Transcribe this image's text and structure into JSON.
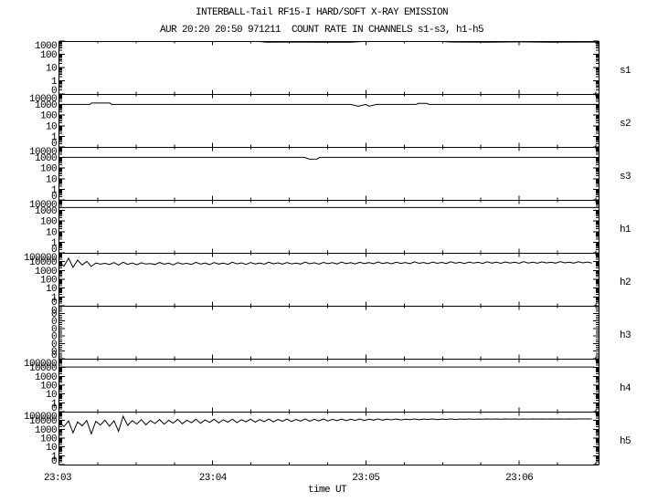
{
  "page": {
    "background": "#ffffff",
    "foreground": "#000000"
  },
  "header": {
    "title": "INTERBALL-Tail RF15-I HARD/SOFT X-RAY EMISSION",
    "subtitle": "AUR 20:20 20:50 971211  COUNT RATE IN CHANNELS s1-s3, h1-h5"
  },
  "chart_data": {
    "type": "line",
    "title": "INTERBALL-Tail RF15-I HARD/SOFT X-RAY EMISSION",
    "subtitle": "AUR 20:20 20:50 971211  COUNT RATE IN CHANNELS s1-s3, h1-h5",
    "xlabel": "time UT",
    "x_tick_labels": [
      "23:03",
      "23:04",
      "23:05",
      "23:06"
    ],
    "x_range_minutes": [
      0,
      3.52
    ],
    "x_minor_tick_seconds": 15,
    "grid": false,
    "legend": "right-side channel labels",
    "panels": [
      {
        "channel": "s1",
        "scale": "log",
        "top_value": 1000,
        "y_tick_labels": [
          "1000",
          "100",
          "10",
          "1",
          "0"
        ],
        "series": {
          "t": [
            0,
            0.3,
            0.6,
            1.0,
            1.3,
            1.35,
            1.5,
            1.7,
            1.9,
            2.0,
            2.2,
            2.5,
            2.55,
            2.8,
            3.0,
            3.2,
            3.52
          ],
          "v": [
            960,
            955,
            965,
            950,
            940,
            820,
            840,
            810,
            830,
            950,
            955,
            930,
            850,
            830,
            860,
            820,
            840
          ]
        }
      },
      {
        "channel": "s2",
        "scale": "log",
        "top_value": 10000,
        "y_tick_labels": [
          "10000",
          "1000",
          "100",
          "10",
          "1",
          "0"
        ],
        "series": {
          "t": [
            0,
            0.2,
            0.21,
            0.33,
            0.34,
            1.9,
            1.95,
            2.0,
            2.02,
            2.07,
            2.33,
            2.34,
            2.4,
            2.41,
            3.52
          ],
          "v": [
            1050,
            1050,
            1400,
            1400,
            1050,
            1050,
            700,
            1050,
            720,
            1050,
            1050,
            1300,
            1300,
            1050,
            1050
          ]
        }
      },
      {
        "channel": "s3",
        "scale": "log",
        "top_value": 10000,
        "y_tick_labels": [
          "10000",
          "1000",
          "100",
          "10",
          "1",
          "0"
        ],
        "series": {
          "t": [
            0,
            1.6,
            1.63,
            1.68,
            1.7,
            3.52
          ],
          "v": [
            1050,
            1050,
            700,
            730,
            1050,
            1050
          ]
        }
      },
      {
        "channel": "h1",
        "scale": "log",
        "top_value": 10000,
        "y_tick_labels": [
          "10000",
          "1000",
          "100",
          "10",
          "1",
          "0"
        ],
        "series": {
          "t": [
            0,
            3.52
          ],
          "v": [
            1900,
            1900
          ]
        }
      },
      {
        "channel": "h2",
        "scale": "log",
        "top_value": 100000,
        "y_tick_labels": [
          "100000",
          "10000",
          "1000",
          "100",
          "10",
          "1",
          "0"
        ],
        "series": {
          "t0": 0,
          "dt": 0.0297,
          "values": [
            9000,
            3000,
            25000,
            2200,
            15000,
            4200,
            11000,
            2800,
            7000,
            5200,
            6500,
            4800,
            7800,
            4100,
            8600,
            5000,
            6900,
            4400,
            7400,
            5300,
            6200,
            4700,
            8100,
            5100,
            6800,
            4300,
            7600,
            5500,
            6400,
            4900,
            8300,
            5200,
            7100,
            4600,
            7900,
            5400,
            6700,
            5000,
            8500,
            5600,
            7200,
            4800,
            8000,
            5500,
            6900,
            5100,
            8700,
            5700,
            7300,
            5200,
            8100,
            5600,
            7000,
            5300,
            8900,
            5800,
            7500,
            5400,
            8200,
            5900,
            7600,
            5500,
            9000,
            6000,
            7700,
            5600,
            8400,
            6100,
            7800,
            5700,
            9200,
            6200,
            7900,
            5800,
            8600,
            6300,
            8000,
            5900,
            9400,
            6400,
            8100,
            6000,
            8800,
            6500,
            8200,
            6100,
            9600,
            6600,
            8300,
            6200,
            9000,
            6700,
            8400,
            6300,
            9800,
            6800,
            8500,
            6400,
            9200,
            6900,
            8600,
            6500,
            10000,
            7000,
            8700,
            6600,
            9400,
            7100,
            8800,
            6700,
            10200,
            7200,
            8900,
            6800,
            9600,
            7300,
            9000,
            6900
          ]
        }
      },
      {
        "channel": "h3",
        "scale": "linear-zero",
        "y_tick_labels": [
          "0",
          "0",
          "0",
          "0",
          "0",
          "0",
          "0",
          "0"
        ],
        "series": null
      },
      {
        "channel": "h4",
        "scale": "log",
        "top_value": 100000,
        "y_tick_labels": [
          "100000",
          "10000",
          "1000",
          "100",
          "10",
          "1",
          "0"
        ],
        "series": {
          "t": [
            0,
            3.49
          ],
          "v": [
            11500,
            11500
          ]
        }
      },
      {
        "channel": "h5",
        "scale": "log",
        "top_value": 100000,
        "y_tick_labels": [
          "100000",
          "10000",
          "1000",
          "100",
          "10",
          "1",
          "0"
        ],
        "series": {
          "t0": 0,
          "dt": 0.0297,
          "values": [
            6000,
            2000,
            9000,
            400,
            7000,
            2500,
            10000,
            300,
            8000,
            3000,
            11000,
            2200,
            9000,
            600,
            30000,
            2800,
            9500,
            4000,
            12500,
            3200,
            10000,
            4500,
            13000,
            3800,
            10500,
            5000,
            13500,
            4200,
            11000,
            5500,
            13800,
            4800,
            11500,
            6000,
            14000,
            5200,
            12000,
            6500,
            14200,
            5800,
            12300,
            7000,
            14300,
            6400,
            12600,
            7500,
            14400,
            7000,
            12900,
            8000,
            14500,
            7600,
            13200,
            8500,
            14500,
            8200,
            13400,
            9000,
            14600,
            8800,
            13600,
            9500,
            14600,
            9400,
            13800,
            10200,
            14700,
            10000,
            14000,
            11000,
            14700,
            10800,
            14200,
            11600,
            14700,
            11400,
            14300,
            12200,
            14800,
            12000,
            14400,
            12800,
            14800,
            12600,
            14500,
            13200,
            14800,
            13000,
            14600,
            13600,
            14800,
            13400,
            14650,
            13800,
            14800,
            13700,
            14700,
            14000,
            14800,
            14000,
            14750,
            14200,
            14800,
            14300,
            14800,
            14400,
            14800,
            14500,
            14800,
            14550,
            14800,
            14600,
            14800,
            14650,
            14800,
            14700,
            14800,
            14750
          ]
        }
      }
    ]
  }
}
